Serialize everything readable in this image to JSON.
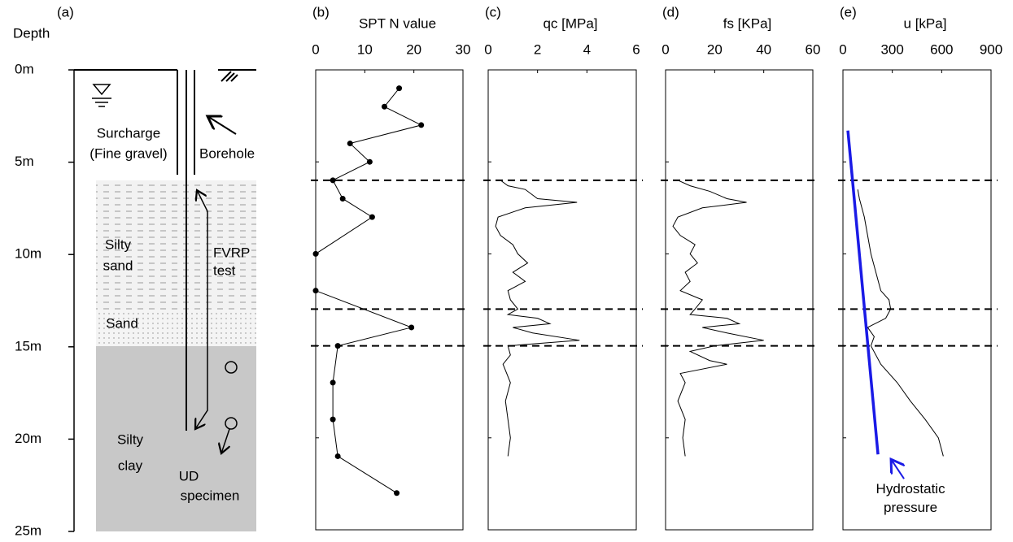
{
  "profile": {
    "label": "(a)",
    "depth_title": "Depth",
    "depth_ticks": [
      {
        "value": 0,
        "label": "0m"
      },
      {
        "value": 5,
        "label": "5m"
      },
      {
        "value": 10,
        "label": "10m"
      },
      {
        "value": 15,
        "label": "15m"
      },
      {
        "value": 20,
        "label": "20m"
      },
      {
        "value": 25,
        "label": "25m"
      }
    ],
    "surcharge": "Surcharge",
    "surcharge_note": "(Fine gravel)",
    "borehole": "Borehole",
    "silty_sand": [
      "Silty",
      "sand"
    ],
    "fvrp": [
      "FVRP",
      "test"
    ],
    "sand": "Sand",
    "silty_clay": [
      "Silty",
      "clay"
    ],
    "ud": [
      "UD",
      "specimen"
    ]
  },
  "layer_boundaries": [
    6,
    13,
    15
  ],
  "chart_data": [
    {
      "type": "line",
      "label": "(b)",
      "xlabel": "SPT N value",
      "markers": true,
      "color": "#000000",
      "xlim": [
        0,
        30
      ],
      "xticks": [
        0,
        10,
        20,
        30
      ],
      "ylim": [
        25,
        0
      ],
      "depth": [
        1,
        2,
        3,
        4,
        5,
        6,
        7,
        8,
        10,
        12,
        14,
        15,
        17,
        19,
        21,
        23
      ],
      "values": [
        17,
        14,
        21.5,
        7,
        11,
        3.5,
        5.5,
        11.5,
        0,
        0,
        19.5,
        4.5,
        3.5,
        3.5,
        4.5,
        16.5
      ]
    },
    {
      "type": "line",
      "label": "(c)",
      "xlabel": "qc [MPa]",
      "markers": false,
      "color": "#000000",
      "xlim": [
        0,
        6
      ],
      "xticks": [
        0,
        2,
        4,
        6
      ],
      "ylim": [
        25,
        0
      ],
      "depth": [
        6,
        6.3,
        6.5,
        7,
        7.2,
        7.5,
        8,
        8.5,
        9,
        9.5,
        10,
        10.5,
        11,
        11.5,
        12,
        12.5,
        13,
        13.3,
        13.5,
        13.8,
        14,
        14.3,
        14.7,
        15,
        15.5,
        16,
        17,
        18,
        19,
        20,
        21
      ],
      "values": [
        0.5,
        0.8,
        1.5,
        2,
        3.6,
        1.5,
        0.4,
        0.3,
        0.5,
        1,
        1.2,
        1.6,
        1,
        1.5,
        0.8,
        0.9,
        1.2,
        0.8,
        2,
        2.5,
        1,
        1.8,
        3.7,
        0.8,
        0.9,
        0.6,
        0.9,
        0.7,
        0.8,
        0.9,
        0.8
      ]
    },
    {
      "type": "line",
      "label": "(d)",
      "xlabel": "fs [KPa]",
      "markers": false,
      "color": "#000000",
      "xlim": [
        0,
        60
      ],
      "xticks": [
        0,
        20,
        40,
        60
      ],
      "ylim": [
        25,
        0
      ],
      "depth": [
        6,
        6.3,
        6.6,
        7,
        7.2,
        7.5,
        8,
        8.5,
        9,
        9.5,
        10,
        10.5,
        11,
        11.5,
        12,
        12.5,
        13,
        13.3,
        13.5,
        13.8,
        14,
        14.3,
        14.7,
        15,
        15.3,
        15.8,
        16,
        16.5,
        17,
        18,
        19,
        20,
        21
      ],
      "values": [
        5,
        10,
        18,
        25,
        33,
        15,
        5,
        3,
        6,
        12,
        10,
        13,
        8,
        10,
        6,
        15,
        12,
        10,
        25,
        30,
        15,
        25,
        40,
        20,
        10,
        18,
        25,
        6,
        8,
        5,
        8,
        7,
        8
      ]
    },
    {
      "type": "line",
      "label": "(e)",
      "xlabel": "u [kPa]",
      "markers": false,
      "color": "#000000",
      "xlim": [
        0,
        900
      ],
      "xticks": [
        0,
        300,
        600,
        900
      ],
      "ylim": [
        25,
        0
      ],
      "depth": [
        6.5,
        7,
        8,
        9,
        10,
        11,
        12,
        12.5,
        13,
        13.5,
        14,
        14.5,
        15,
        16,
        17,
        18,
        19,
        20,
        21
      ],
      "values": [
        90,
        100,
        130,
        150,
        170,
        200,
        230,
        280,
        290,
        260,
        150,
        190,
        170,
        230,
        330,
        410,
        500,
        580,
        610
      ],
      "hydrostatic": {
        "name": "Hydrostatic pressure",
        "color": "#1a1ae6",
        "depth": [
          3.3,
          20.9
        ],
        "values": [
          30,
          213
        ]
      }
    }
  ]
}
